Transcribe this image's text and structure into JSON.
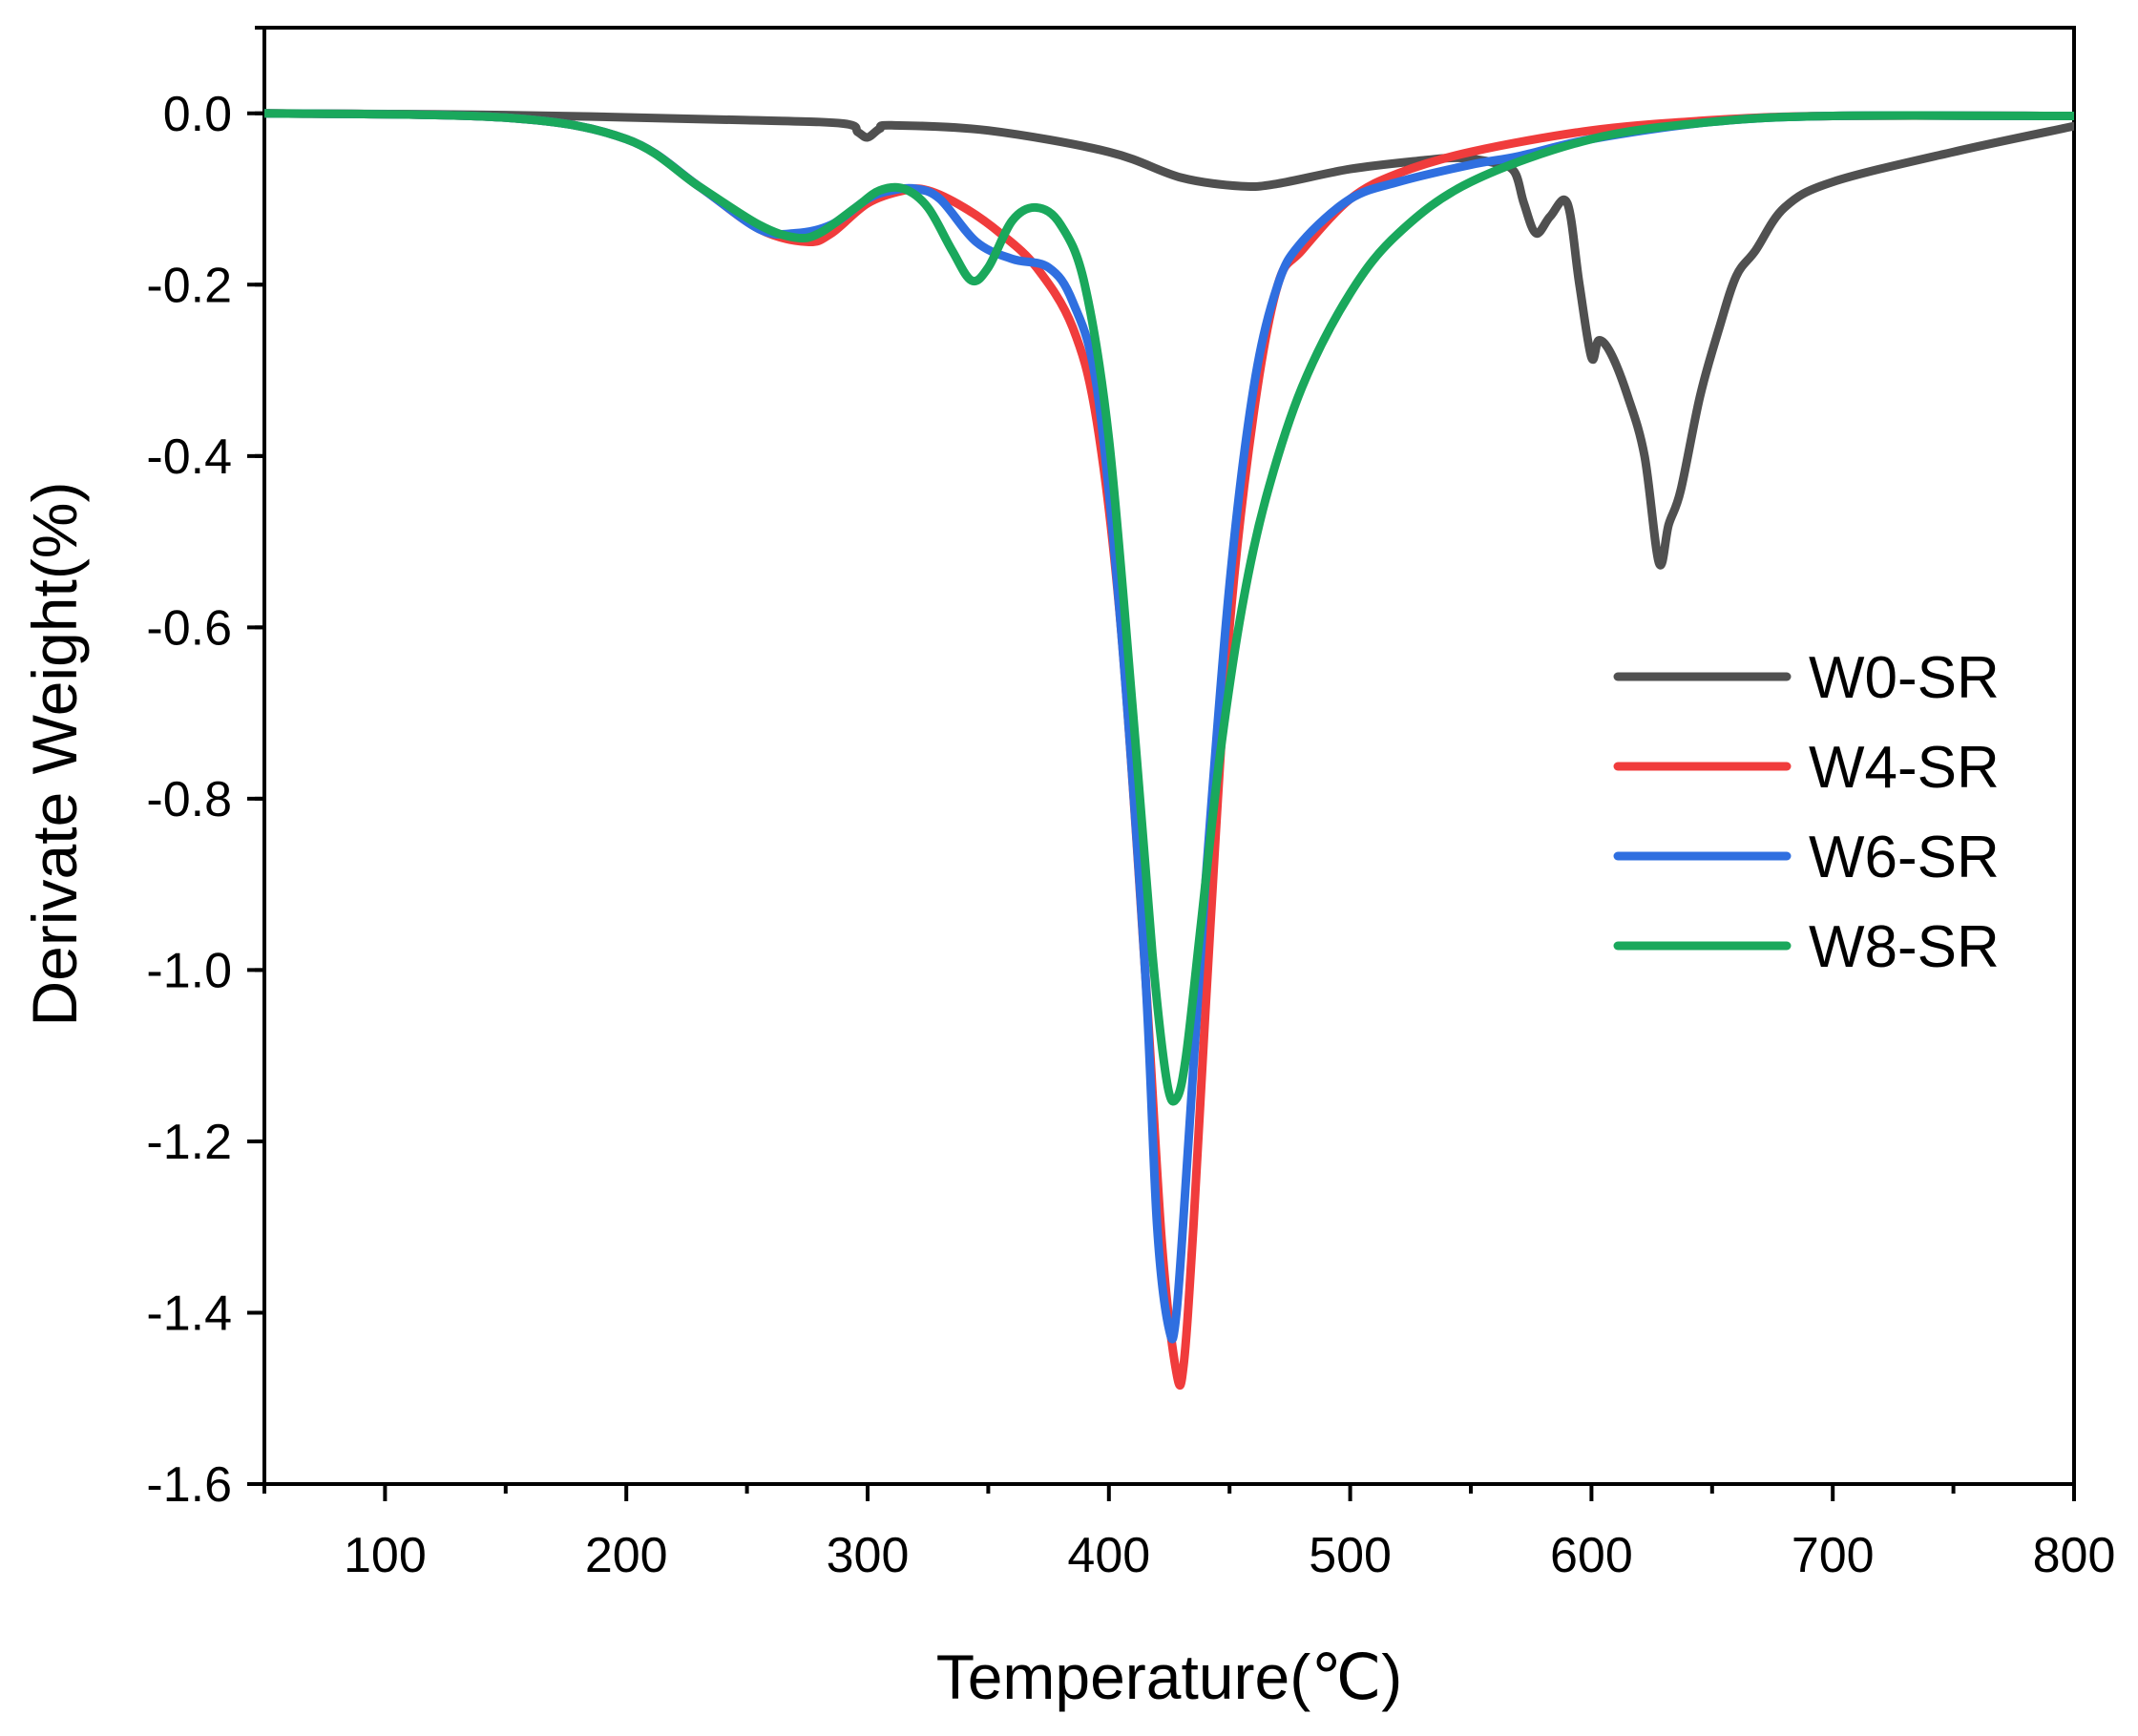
{
  "chart_data": {
    "type": "line",
    "xlabel": "Temperature(℃)",
    "ylabel": "Derivate Weight(%)",
    "xlim": [
      50,
      800
    ],
    "ylim": [
      -1.6,
      0.1
    ],
    "xticks": [
      100,
      200,
      300,
      400,
      500,
      600,
      700,
      800
    ],
    "xtick_labels": [
      "100",
      "200",
      "300",
      "400",
      "500",
      "600",
      "700",
      "800"
    ],
    "yticks": [
      0.0,
      -0.2,
      -0.4,
      -0.6,
      -0.8,
      -1.0,
      -1.2,
      -1.4,
      -1.6
    ],
    "ytick_labels": [
      "0.0",
      "-0.2",
      "-0.4",
      "-0.6",
      "-0.8",
      "-1.0",
      "-1.2",
      "-1.4",
      "-1.6"
    ],
    "legend_position": "right",
    "series": [
      {
        "name": "W0-SR",
        "color": "#505050",
        "x": [
          50,
          150,
          250,
          290,
          296,
          300,
          305,
          310,
          350,
          400,
          430,
          455,
          470,
          500,
          530,
          545,
          560,
          568,
          572,
          577,
          583,
          590,
          595,
          600,
          603,
          608,
          615,
          622,
          628,
          632,
          637,
          645,
          653,
          660,
          668,
          680,
          700,
          750,
          800
        ],
        "y": [
          0.0,
          -0.002,
          -0.008,
          -0.012,
          -0.022,
          -0.028,
          -0.018,
          -0.014,
          -0.02,
          -0.045,
          -0.075,
          -0.085,
          -0.082,
          -0.065,
          -0.055,
          -0.052,
          -0.058,
          -0.068,
          -0.105,
          -0.14,
          -0.12,
          -0.105,
          -0.2,
          -0.285,
          -0.265,
          -0.28,
          -0.33,
          -0.4,
          -0.525,
          -0.48,
          -0.44,
          -0.33,
          -0.25,
          -0.19,
          -0.16,
          -0.11,
          -0.08,
          -0.045,
          -0.015
        ]
      },
      {
        "name": "W4-SR",
        "color": "#f03c3c",
        "x": [
          50,
          150,
          200,
          230,
          255,
          275,
          285,
          300,
          315,
          325,
          340,
          355,
          370,
          385,
          395,
          405,
          415,
          422,
          428,
          431,
          435,
          442,
          450,
          460,
          470,
          480,
          500,
          520,
          550,
          600,
          650,
          700,
          800
        ],
        "y": [
          0.0,
          -0.005,
          -0.03,
          -0.085,
          -0.135,
          -0.15,
          -0.14,
          -0.105,
          -0.09,
          -0.09,
          -0.11,
          -0.14,
          -0.18,
          -0.25,
          -0.36,
          -0.6,
          -1.0,
          -1.32,
          -1.47,
          -1.46,
          -1.3,
          -0.95,
          -0.6,
          -0.35,
          -0.2,
          -0.16,
          -0.1,
          -0.07,
          -0.045,
          -0.02,
          -0.008,
          -0.003,
          -0.003
        ]
      },
      {
        "name": "W6-SR",
        "color": "#2f6fe0",
        "x": [
          50,
          150,
          200,
          230,
          255,
          270,
          285,
          300,
          310,
          320,
          330,
          345,
          360,
          375,
          385,
          395,
          405,
          415,
          420,
          425,
          428,
          433,
          440,
          450,
          460,
          470,
          480,
          500,
          520,
          550,
          570,
          600,
          650,
          700,
          800
        ],
        "y": [
          0.0,
          -0.005,
          -0.03,
          -0.085,
          -0.135,
          -0.14,
          -0.13,
          -0.1,
          -0.09,
          -0.088,
          -0.1,
          -0.15,
          -0.17,
          -0.18,
          -0.22,
          -0.32,
          -0.6,
          -1.0,
          -1.3,
          -1.42,
          -1.4,
          -1.2,
          -0.9,
          -0.55,
          -0.32,
          -0.2,
          -0.15,
          -0.1,
          -0.08,
          -0.06,
          -0.05,
          -0.03,
          -0.01,
          -0.003,
          -0.003
        ]
      },
      {
        "name": "W8-SR",
        "color": "#1aa85c",
        "x": [
          50,
          150,
          200,
          230,
          255,
          270,
          280,
          295,
          305,
          315,
          325,
          335,
          343,
          350,
          360,
          370,
          380,
          390,
          400,
          410,
          418,
          424,
          428,
          432,
          438,
          446,
          455,
          465,
          480,
          500,
          520,
          550,
          600,
          650,
          700,
          800
        ],
        "y": [
          0.0,
          -0.005,
          -0.03,
          -0.085,
          -0.13,
          -0.145,
          -0.14,
          -0.11,
          -0.09,
          -0.088,
          -0.11,
          -0.16,
          -0.195,
          -0.18,
          -0.125,
          -0.11,
          -0.13,
          -0.2,
          -0.38,
          -0.7,
          -0.98,
          -1.13,
          -1.15,
          -1.1,
          -0.95,
          -0.75,
          -0.58,
          -0.45,
          -0.32,
          -0.21,
          -0.14,
          -0.08,
          -0.03,
          -0.01,
          -0.003,
          -0.003
        ]
      }
    ]
  }
}
